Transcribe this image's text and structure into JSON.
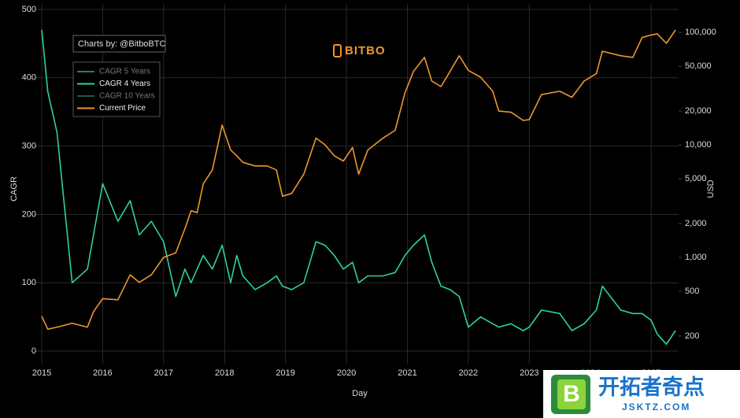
{
  "chart_data": {
    "type": "line",
    "logo": "BITBO",
    "credit": "Charts by: @BitboBTC",
    "x_label": "Day",
    "y_label": "CAGR",
    "y2_label": "USD",
    "xlim": [
      2015,
      2025.45
    ],
    "xticks": [
      2015,
      2016,
      2017,
      2018,
      2019,
      2020,
      2021,
      2022,
      2023,
      2024,
      2025
    ],
    "ylim": [
      0,
      500
    ],
    "yticks": [
      0,
      100,
      200,
      300,
      400,
      500
    ],
    "y2lim": [
      147,
      160000
    ],
    "y2_log": true,
    "y2ticks": [
      200,
      500,
      {
        "value": 1000,
        "label": "1,000"
      },
      {
        "value": 2000,
        "label": "2,000"
      },
      {
        "value": 5000,
        "label": "5,000"
      },
      {
        "value": 10000,
        "label": "10,000"
      },
      {
        "value": 20000,
        "label": "20,000"
      },
      {
        "value": 50000,
        "label": "50,000"
      },
      {
        "value": 100000,
        "label": "100,000"
      }
    ],
    "grid": true,
    "legend_position": "upper-left",
    "x": [
      2015.0,
      2015.1,
      2015.25,
      2015.5,
      2015.75,
      2015.85,
      2016.0,
      2016.25,
      2016.45,
      2016.6,
      2016.8,
      2017.0,
      2017.2,
      2017.35,
      2017.45,
      2017.55,
      2017.65,
      2017.8,
      2017.96,
      2018.1,
      2018.2,
      2018.3,
      2018.5,
      2018.7,
      2018.85,
      2018.95,
      2019.1,
      2019.3,
      2019.5,
      2019.65,
      2019.8,
      2019.95,
      2020.1,
      2020.2,
      2020.35,
      2020.6,
      2020.8,
      2020.96,
      2021.1,
      2021.28,
      2021.4,
      2021.55,
      2021.7,
      2021.85,
      2022.0,
      2022.2,
      2022.4,
      2022.5,
      2022.7,
      2022.9,
      2023.0,
      2023.2,
      2023.5,
      2023.7,
      2023.9,
      2024.1,
      2024.2,
      2024.5,
      2024.7,
      2024.85,
      2025.0,
      2025.1,
      2025.25,
      2025.4
    ],
    "series": [
      {
        "name": "CAGR 5 Years",
        "color": "#4a6a70",
        "visible": false
      },
      {
        "name": "CAGR 4 Years",
        "color": "#2ed39a",
        "axis": "y",
        "values": [
          470,
          380,
          320,
          100,
          120,
          170,
          245,
          190,
          220,
          170,
          190,
          160,
          80,
          120,
          100,
          120,
          140,
          120,
          155,
          100,
          140,
          110,
          90,
          100,
          110,
          95,
          90,
          100,
          160,
          155,
          140,
          120,
          130,
          100,
          110,
          110,
          115,
          140,
          155,
          170,
          130,
          95,
          90,
          80,
          35,
          50,
          40,
          35,
          40,
          30,
          35,
          60,
          55,
          30,
          40,
          60,
          95,
          60,
          55,
          55,
          45,
          25,
          10,
          30
        ]
      },
      {
        "name": "CAGR 10 Years",
        "color": "#1f5a3c",
        "visible": false
      },
      {
        "name": "Current Price",
        "color": "#f0962e",
        "axis": "y2",
        "values": [
          300,
          230,
          240,
          260,
          240,
          330,
          430,
          420,
          700,
          600,
          700,
          1000,
          1100,
          1800,
          2600,
          2500,
          4500,
          6000,
          15000,
          9000,
          8000,
          7000,
          6500,
          6500,
          6000,
          3500,
          3700,
          5500,
          11500,
          10000,
          8000,
          7200,
          9500,
          5500,
          9000,
          11500,
          13500,
          29000,
          45000,
          60000,
          37000,
          33000,
          45000,
          62000,
          46000,
          40000,
          30000,
          20000,
          19500,
          16500,
          16800,
          28000,
          30000,
          26500,
          37000,
          43000,
          68000,
          62000,
          60000,
          90000,
          95000,
          97000,
          80000,
          105000
        ]
      }
    ]
  },
  "watermark": {
    "brand": "开拓者奇点",
    "url": "JSKTZ.COM",
    "icon": "B"
  }
}
